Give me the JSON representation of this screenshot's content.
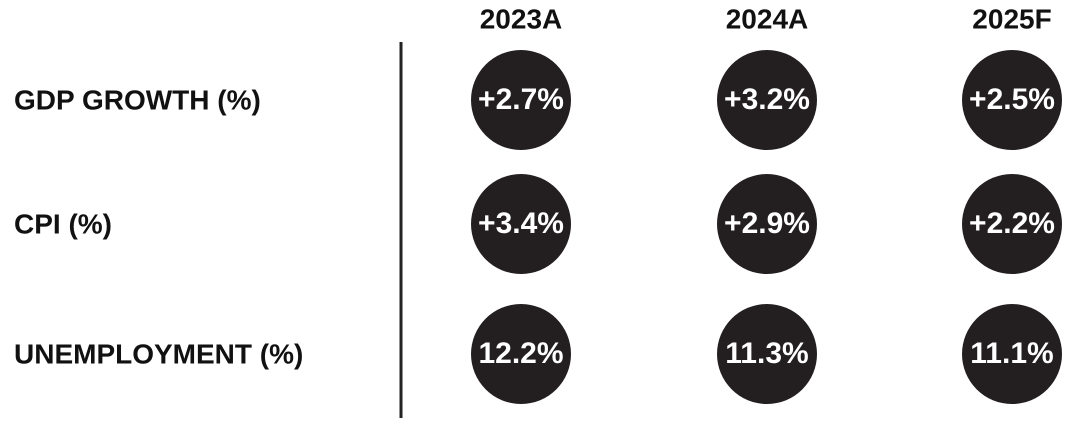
{
  "table": {
    "columns": [
      "2023A",
      "2024A",
      "2025F"
    ],
    "rows": [
      {
        "label": "GDP GROWTH (%)",
        "cells": [
          "+2.7%",
          "+3.2%",
          "+2.5%"
        ]
      },
      {
        "label": "CPI (%)",
        "cells": [
          "+3.4%",
          "+2.9%",
          "+2.2%"
        ]
      },
      {
        "label": "UNEMPLOYMENT (%)",
        "cells": [
          "12.2%",
          "11.3%",
          "11.1%"
        ]
      }
    ]
  }
}
